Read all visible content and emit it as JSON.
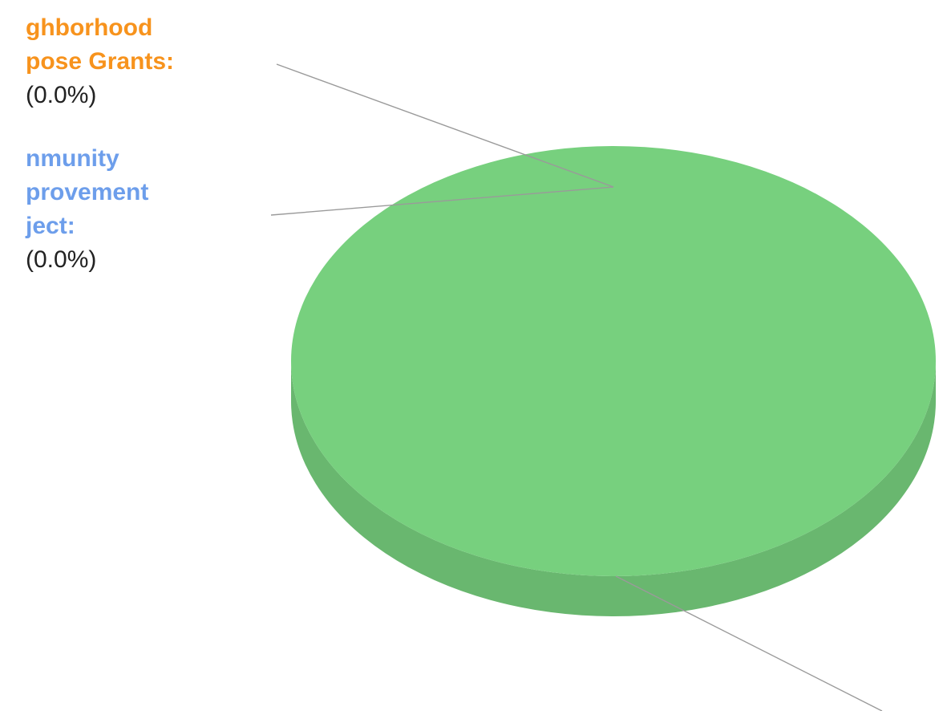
{
  "chart_data": {
    "type": "pie",
    "style": "3d",
    "title": "",
    "slices": [
      {
        "label": "Neighborhood Purpose Grants",
        "visible_label_lines": [
          "ghborhood",
          "pose Grants:"
        ],
        "visible_value_text": "(0.0%)",
        "percent": 0.0,
        "color": "#f7931d"
      },
      {
        "label": "Community Improvement Project",
        "visible_label_lines": [
          "nmunity",
          "provement",
          "ject:"
        ],
        "visible_value_text": "(0.0%)",
        "percent": 0.0,
        "color": "#6d9eeb"
      },
      {
        "label": "",
        "visible_label_lines": [],
        "visible_value_text": "",
        "percent": 100.0,
        "color": "#77d07e"
      }
    ]
  }
}
